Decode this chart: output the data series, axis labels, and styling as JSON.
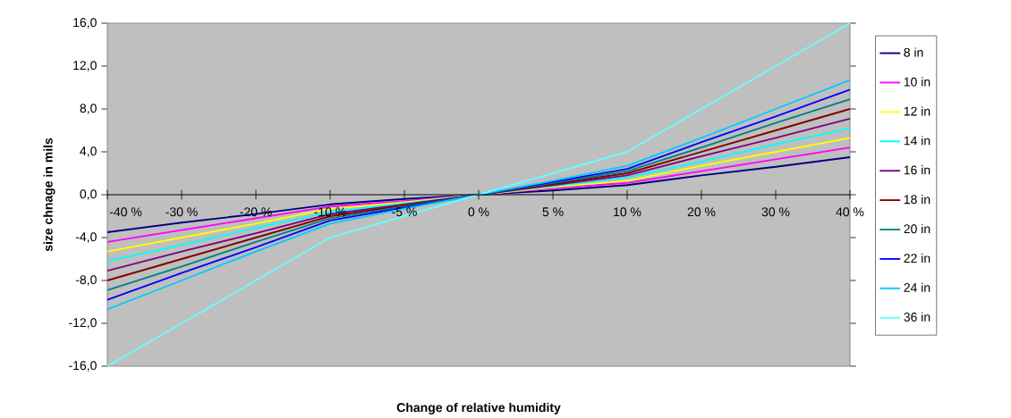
{
  "chart_data": {
    "type": "line",
    "xlabel": "Change of relative humidity",
    "ylabel": "size chnage in mils",
    "categories": [
      "-40 %",
      "-30 %",
      "-20 %",
      "-10 %",
      "-5 %",
      "0 %",
      "5 %",
      "10 %",
      "20 %",
      "30 %",
      "40 %"
    ],
    "ylim": [
      -16,
      16
    ],
    "yticks": [
      {
        "value": -16,
        "label": "-16,0"
      },
      {
        "value": -12,
        "label": "-12,0"
      },
      {
        "value": -8,
        "label": "-8,0"
      },
      {
        "value": -4,
        "label": "-4,0"
      },
      {
        "value": 0,
        "label": "0,0"
      },
      {
        "value": 4,
        "label": "4,0"
      },
      {
        "value": 8,
        "label": "8,0"
      },
      {
        "value": 12,
        "label": "12,0"
      },
      {
        "value": 16,
        "label": "16,0"
      }
    ],
    "legend": "right",
    "marker": "none",
    "line_style": "solid",
    "series": [
      {
        "name": "8 in",
        "color": "#000080",
        "values": [
          -3.5,
          -2.6,
          -1.8,
          -0.9,
          -0.4,
          0,
          0.4,
          0.9,
          1.8,
          2.6,
          3.5
        ]
      },
      {
        "name": "10 in",
        "color": "#ff00ff",
        "values": [
          -4.4,
          -3.3,
          -2.2,
          -1.1,
          -0.6,
          0,
          0.6,
          1.1,
          2.2,
          3.3,
          4.4
        ]
      },
      {
        "name": "12 in",
        "color": "#ffff00",
        "values": [
          -5.3,
          -4.0,
          -2.7,
          -1.3,
          -0.7,
          0,
          0.7,
          1.3,
          2.7,
          4.0,
          5.3
        ]
      },
      {
        "name": "14 in",
        "color": "#00ffff",
        "values": [
          -6.2,
          -4.7,
          -3.1,
          -1.6,
          -0.8,
          0,
          0.8,
          1.6,
          3.1,
          4.7,
          6.2
        ]
      },
      {
        "name": "16 in",
        "color": "#800080",
        "values": [
          -7.1,
          -5.3,
          -3.6,
          -1.8,
          -0.9,
          0,
          0.9,
          1.8,
          3.6,
          5.3,
          7.1
        ]
      },
      {
        "name": "18 in",
        "color": "#800000",
        "values": [
          -8,
          -6,
          -4,
          -2,
          -1,
          0,
          1,
          2,
          4,
          6,
          8
        ]
      },
      {
        "name": "20 in",
        "color": "#008080",
        "values": [
          -8.9,
          -6.7,
          -4.4,
          -2.2,
          -1.1,
          0,
          1.1,
          2.2,
          4.4,
          6.7,
          8.9
        ]
      },
      {
        "name": "22 in",
        "color": "#0000ff",
        "values": [
          -9.8,
          -7.3,
          -4.9,
          -2.4,
          -1.2,
          0,
          1.2,
          2.4,
          4.9,
          7.3,
          9.8
        ]
      },
      {
        "name": "24 in",
        "color": "#00ccff",
        "values": [
          -10.7,
          -8.0,
          -5.3,
          -2.7,
          -1.3,
          0,
          1.3,
          2.7,
          5.3,
          8.0,
          10.7
        ]
      },
      {
        "name": "36 in",
        "color": "#66ffff",
        "values": [
          -16,
          -12,
          -8,
          -4,
          -2,
          0,
          2,
          4,
          8,
          12,
          16
        ]
      }
    ]
  }
}
